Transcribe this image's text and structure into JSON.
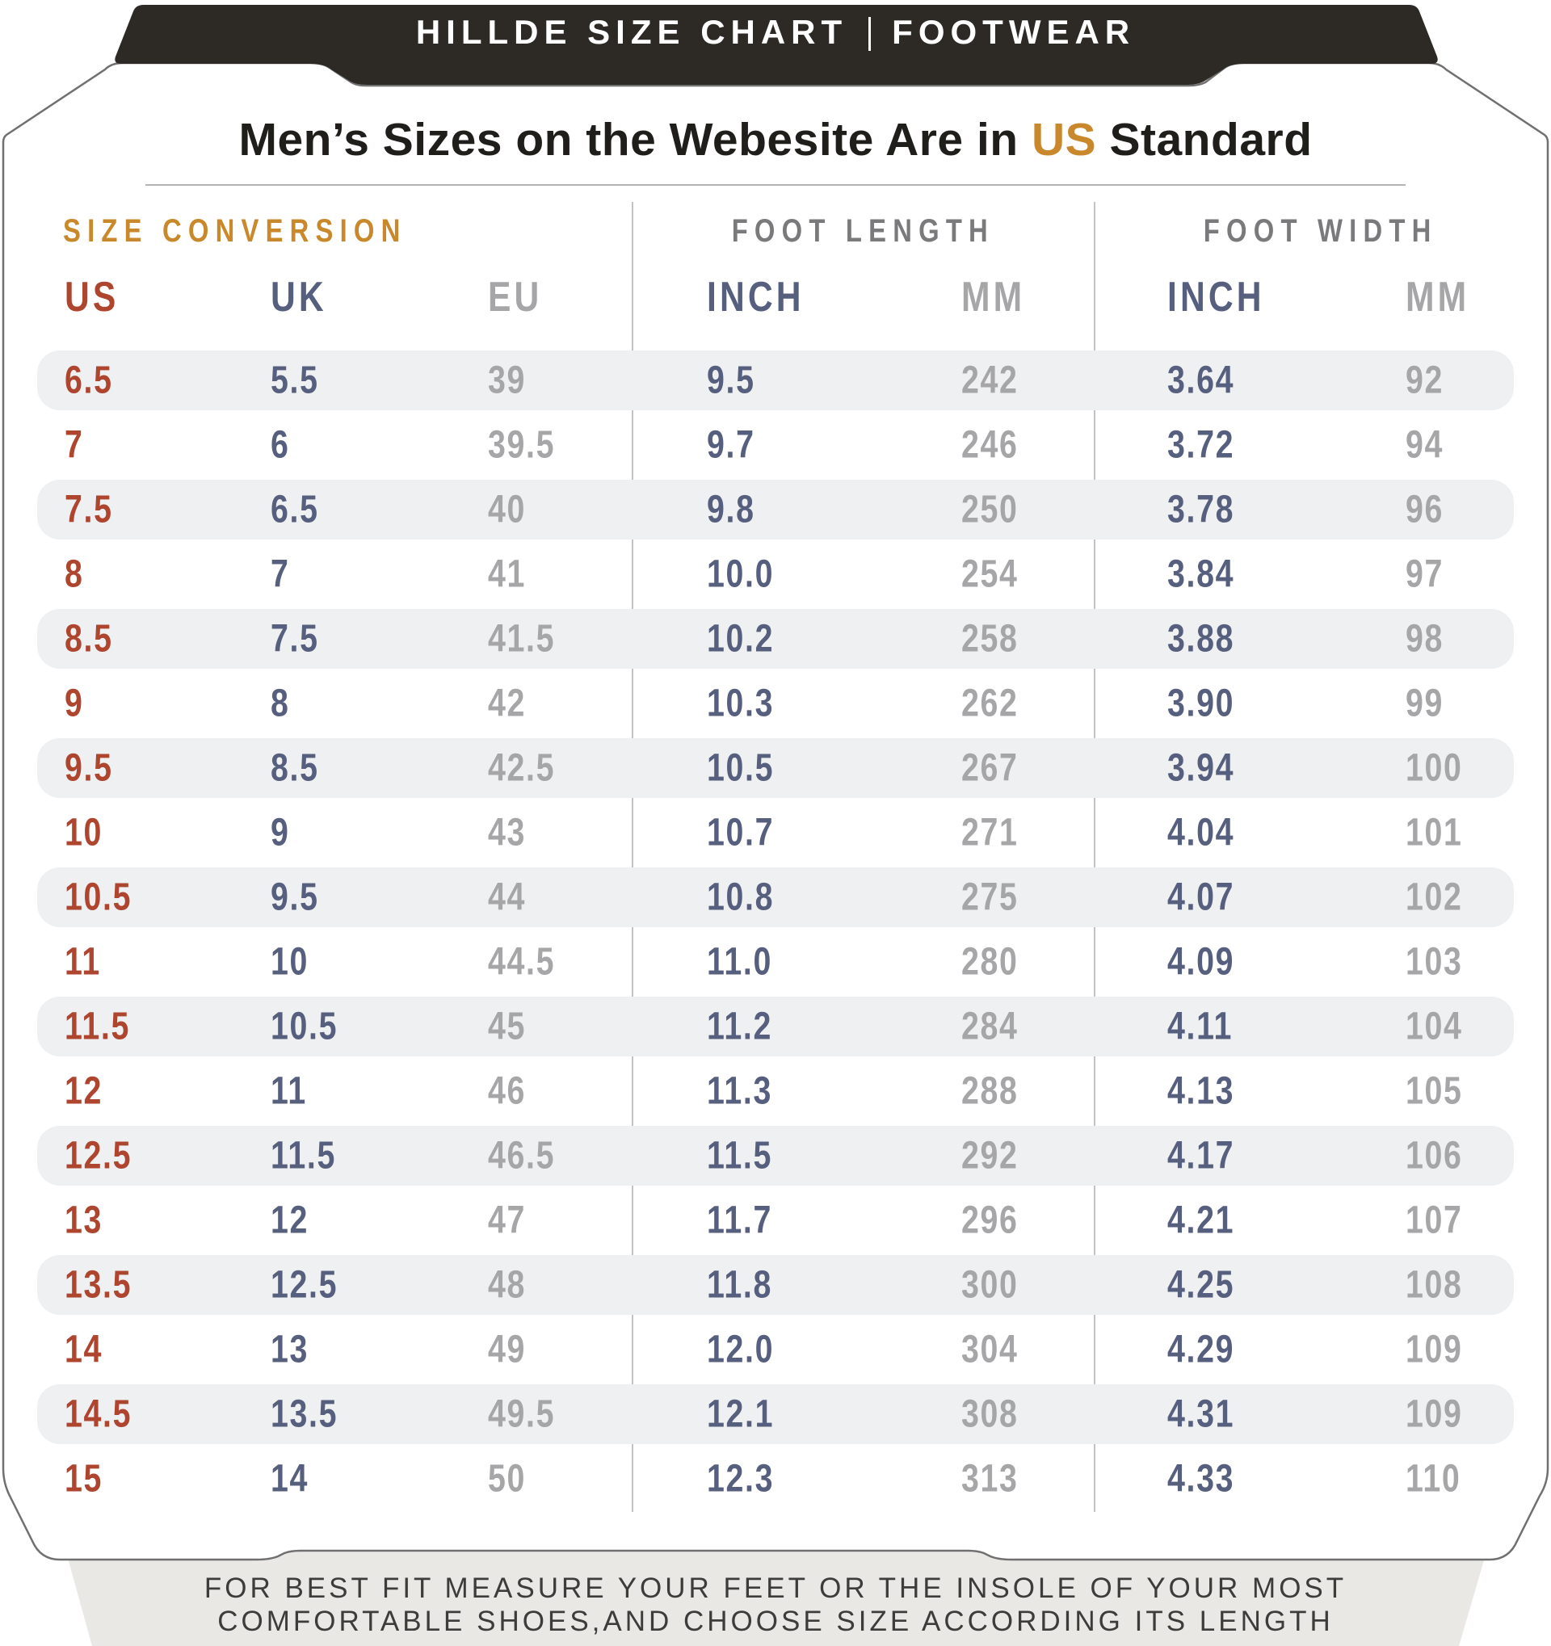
{
  "banner": {
    "left": "HILLDE SIZE CHART",
    "right": "FOOTWEAR"
  },
  "title": {
    "pre": "Men’s Sizes on the Webesite Are in ",
    "highlight": "US",
    "post": " Standard"
  },
  "sections": {
    "conversion": "SIZE CONVERSION",
    "length": "FOOT LENGTH",
    "width": "FOOT WIDTH"
  },
  "columns": [
    "US",
    "UK",
    "EU",
    "INCH",
    "MM",
    "INCH",
    "MM"
  ],
  "footer": {
    "line1": "FOR BEST FIT MEASURE YOUR FEET OR THE INSOLE OF YOUR MOST",
    "line2": "COMFORTABLE SHOES,AND CHOOSE SIZE ACCORDING ITS LENGTH"
  },
  "colors": {
    "banner_bg": "#2d2a26",
    "accent_gold": "#c8882b",
    "us_red": "#ad452f",
    "slate_blue": "#575f7e",
    "gray_value": "#a6a6a8",
    "section_gray": "#7a7a7d",
    "stripe": "#eff0f2",
    "card_border": "#707070",
    "footer_band": "#e9e8e5",
    "title_text": "#201e1b",
    "footer_text": "#3d3c3a"
  },
  "chart_data": {
    "type": "table",
    "title": "Men's Sizes on the Webesite Are in US Standard",
    "section_groups": [
      {
        "label": "SIZE CONVERSION",
        "columns": [
          "US",
          "UK",
          "EU"
        ]
      },
      {
        "label": "FOOT LENGTH",
        "columns": [
          "INCH",
          "MM"
        ]
      },
      {
        "label": "FOOT WIDTH",
        "columns": [
          "INCH",
          "MM"
        ]
      }
    ],
    "columns": [
      "US",
      "UK",
      "EU",
      "FOOT LENGTH INCH",
      "FOOT LENGTH MM",
      "FOOT WIDTH INCH",
      "FOOT WIDTH MM"
    ],
    "rows": [
      [
        "6.5",
        "5.5",
        "39",
        "9.5",
        "242",
        "3.64",
        "92"
      ],
      [
        "7",
        "6",
        "39.5",
        "9.7",
        "246",
        "3.72",
        "94"
      ],
      [
        "7.5",
        "6.5",
        "40",
        "9.8",
        "250",
        "3.78",
        "96"
      ],
      [
        "8",
        "7",
        "41",
        "10.0",
        "254",
        "3.84",
        "97"
      ],
      [
        "8.5",
        "7.5",
        "41.5",
        "10.2",
        "258",
        "3.88",
        "98"
      ],
      [
        "9",
        "8",
        "42",
        "10.3",
        "262",
        "3.90",
        "99"
      ],
      [
        "9.5",
        "8.5",
        "42.5",
        "10.5",
        "267",
        "3.94",
        "100"
      ],
      [
        "10",
        "9",
        "43",
        "10.7",
        "271",
        "4.04",
        "101"
      ],
      [
        "10.5",
        "9.5",
        "44",
        "10.8",
        "275",
        "4.07",
        "102"
      ],
      [
        "11",
        "10",
        "44.5",
        "11.0",
        "280",
        "4.09",
        "103"
      ],
      [
        "11.5",
        "10.5",
        "45",
        "11.2",
        "284",
        "4.11",
        "104"
      ],
      [
        "12",
        "11",
        "46",
        "11.3",
        "288",
        "4.13",
        "105"
      ],
      [
        "12.5",
        "11.5",
        "46.5",
        "11.5",
        "292",
        "4.17",
        "106"
      ],
      [
        "13",
        "12",
        "47",
        "11.7",
        "296",
        "4.21",
        "107"
      ],
      [
        "13.5",
        "12.5",
        "48",
        "11.8",
        "300",
        "4.25",
        "108"
      ],
      [
        "14",
        "13",
        "49",
        "12.0",
        "304",
        "4.29",
        "109"
      ],
      [
        "14.5",
        "13.5",
        "49.5",
        "12.1",
        "308",
        "4.31",
        "109"
      ],
      [
        "15",
        "14",
        "50",
        "12.3",
        "313",
        "4.33",
        "110"
      ]
    ]
  }
}
